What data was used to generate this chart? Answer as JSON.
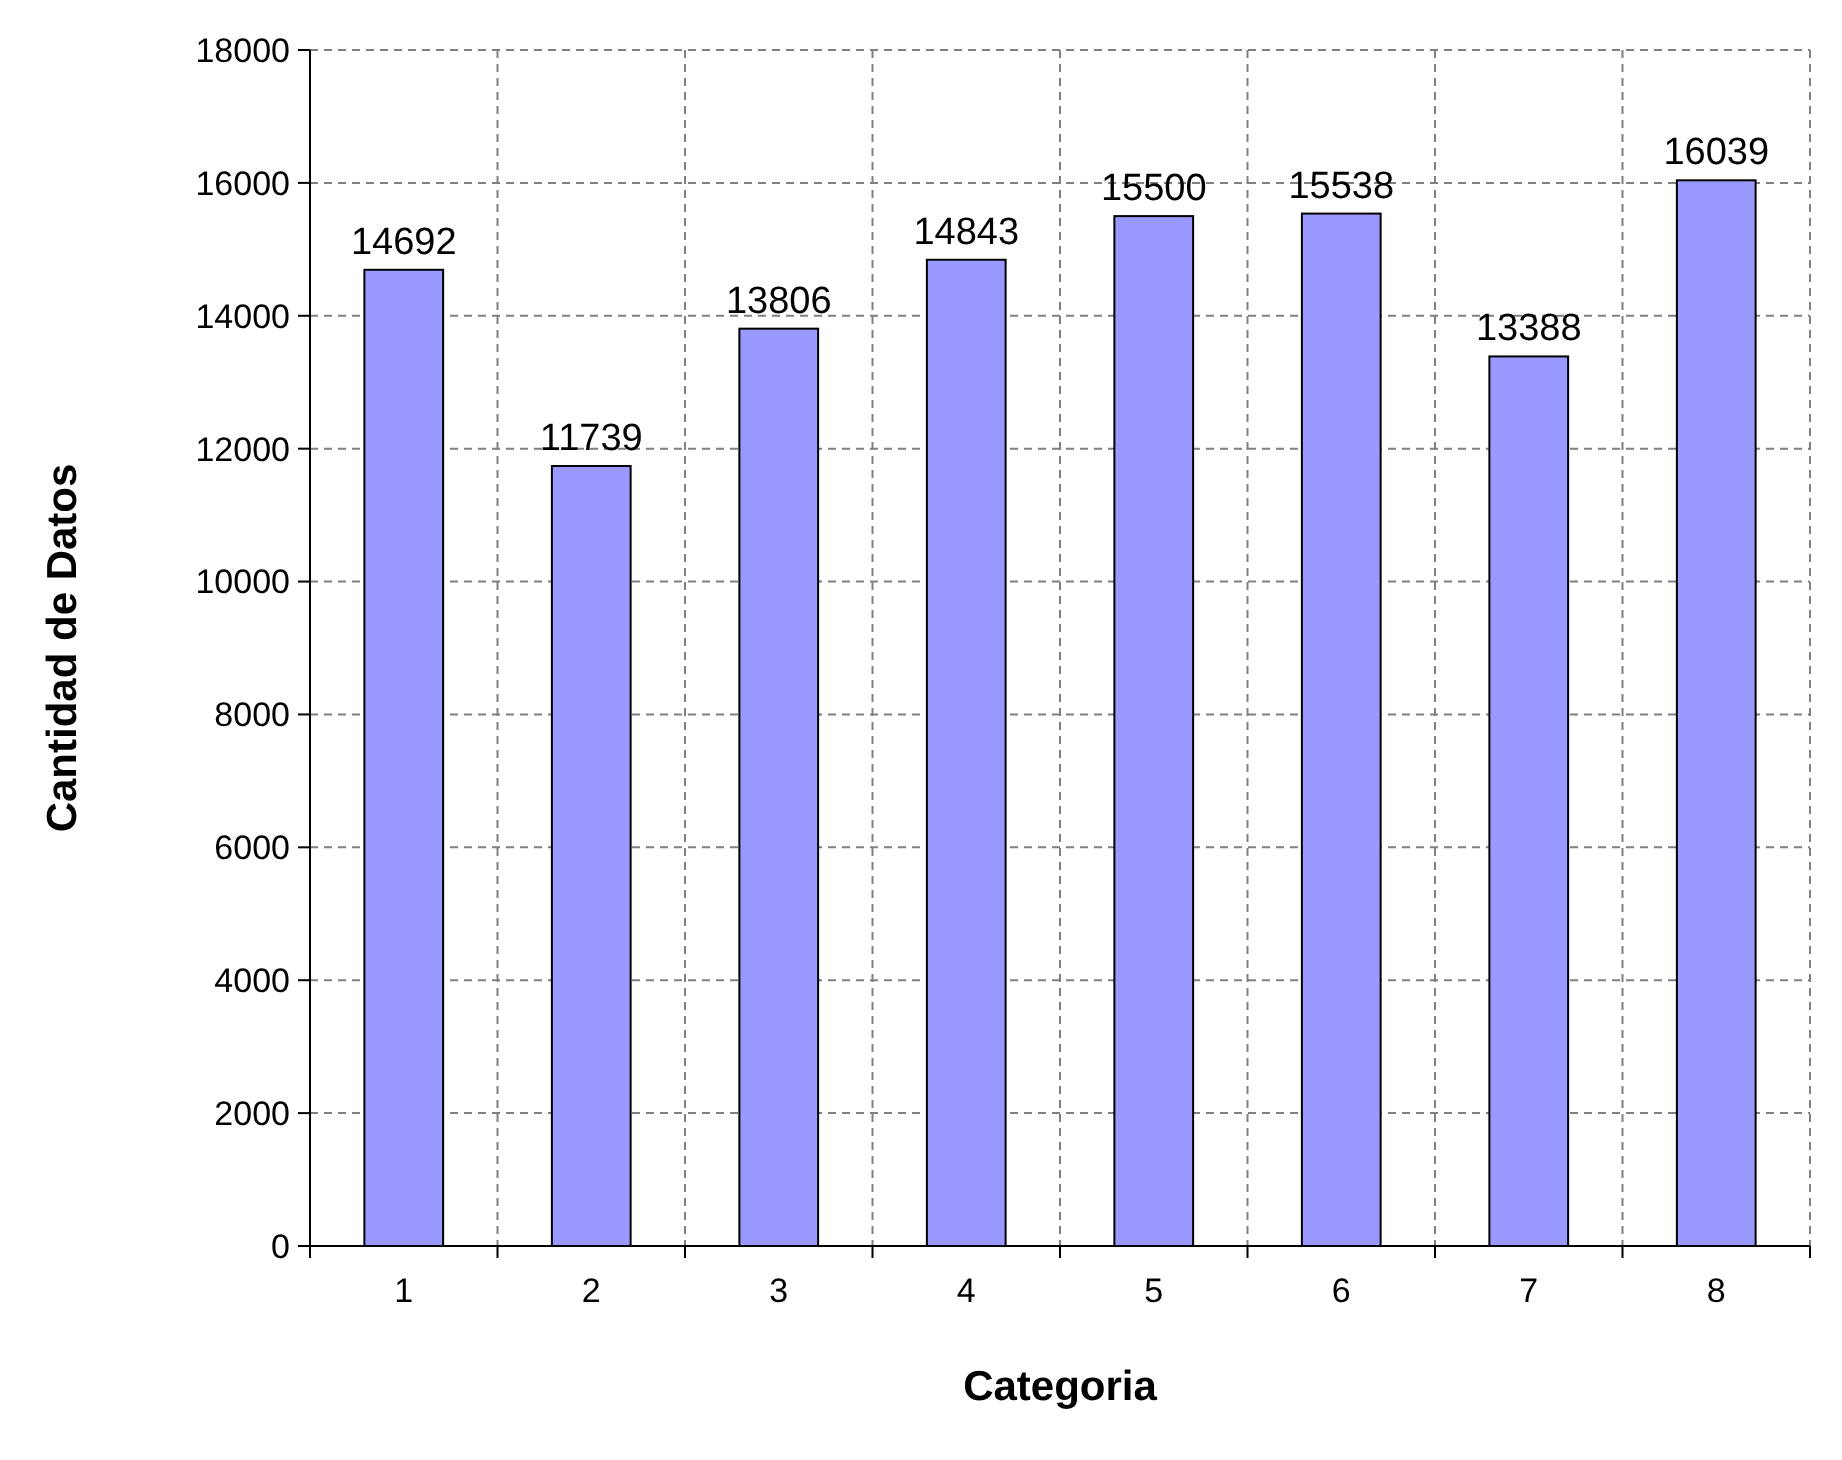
{
  "chart_data": {
    "type": "bar",
    "xlabel": "Categoria",
    "ylabel": "Cantidad de Datos",
    "categories": [
      "1",
      "2",
      "3",
      "4",
      "5",
      "6",
      "7",
      "8"
    ],
    "values": [
      14692,
      11739,
      13806,
      14843,
      15500,
      15538,
      13388,
      16039
    ],
    "color": "#9999ff",
    "data_labels": true,
    "grid": true,
    "ylim": [
      0,
      18000
    ],
    "yticks": [
      0,
      2000,
      4000,
      6000,
      8000,
      10000,
      12000,
      14000,
      16000,
      18000
    ]
  }
}
